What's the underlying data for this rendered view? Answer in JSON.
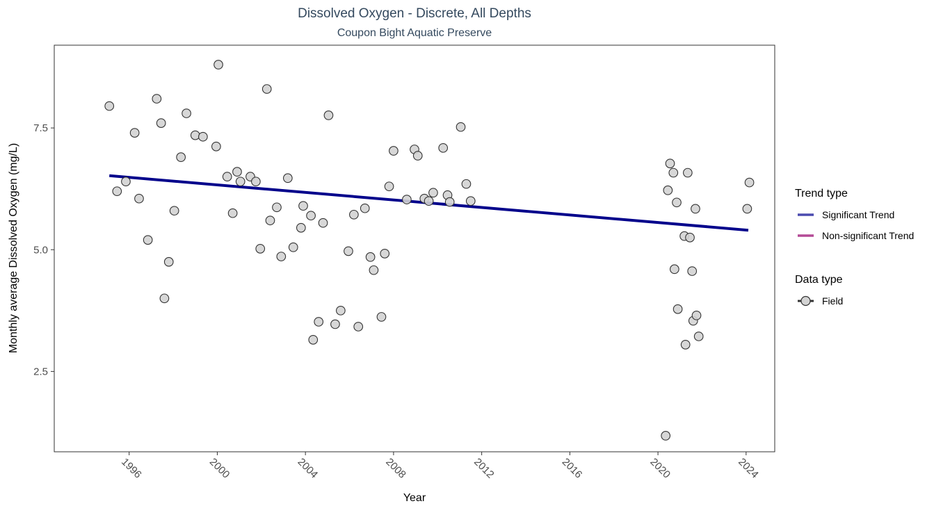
{
  "chart_data": {
    "type": "scatter",
    "title": "Dissolved Oxygen - Discrete, All Depths",
    "subtitle": "Coupon Bight Aquatic Preserve",
    "xlabel": "Year",
    "ylabel": "Monthly average Dissolved Oxygen (mg/L)",
    "xlim": [
      1992.6,
      2025.3
    ],
    "ylim": [
      0.85,
      9.2
    ],
    "x_ticks": [
      1996,
      2000,
      2004,
      2008,
      2012,
      2016,
      2020,
      2024
    ],
    "x_tick_labels": [
      "1996",
      "2000",
      "2004",
      "2008",
      "2012",
      "2016",
      "2020",
      "2024"
    ],
    "y_ticks": [
      2.5,
      5.0,
      7.5
    ],
    "y_tick_labels": [
      "2.5",
      "5.0",
      "7.5"
    ],
    "grid": false,
    "legend_position": "right",
    "colors": {
      "trend_line": "#00008b",
      "significant_trend": "#4b4baf",
      "non_significant_trend": "#b44a96",
      "point_fill": "#d3d3d3",
      "point_stroke": "#333333",
      "title_color": "#34495e"
    },
    "trend": {
      "type": "Significant Trend",
      "x": [
        1995.1,
        2024.1
      ],
      "y": [
        6.52,
        5.4
      ]
    },
    "legend": {
      "trend_title": "Trend type",
      "trend_items": [
        "Significant Trend",
        "Non-significant Trend"
      ],
      "data_title": "Data type",
      "data_items": [
        "Field"
      ]
    },
    "series": [
      {
        "name": "Field",
        "points": [
          [
            1995.1,
            7.95
          ],
          [
            1995.45,
            6.2
          ],
          [
            1995.85,
            6.4
          ],
          [
            1996.25,
            7.4
          ],
          [
            1996.45,
            6.05
          ],
          [
            1996.85,
            5.2
          ],
          [
            1997.25,
            8.1
          ],
          [
            1997.45,
            7.6
          ],
          [
            1997.6,
            4.0
          ],
          [
            1997.8,
            4.75
          ],
          [
            1998.05,
            5.8
          ],
          [
            1998.35,
            6.9
          ],
          [
            1998.6,
            7.8
          ],
          [
            1999.0,
            7.35
          ],
          [
            1999.35,
            7.32
          ],
          [
            1999.95,
            7.12
          ],
          [
            2000.05,
            8.8
          ],
          [
            2000.45,
            6.5
          ],
          [
            2000.7,
            5.75
          ],
          [
            2000.9,
            6.6
          ],
          [
            2001.05,
            6.4
          ],
          [
            2001.5,
            6.5
          ],
          [
            2001.75,
            6.4
          ],
          [
            2001.95,
            5.02
          ],
          [
            2002.25,
            8.3
          ],
          [
            2002.4,
            5.6
          ],
          [
            2002.7,
            5.87
          ],
          [
            2002.9,
            4.86
          ],
          [
            2003.2,
            6.47
          ],
          [
            2003.45,
            5.05
          ],
          [
            2003.8,
            5.45
          ],
          [
            2003.9,
            5.9
          ],
          [
            2004.25,
            5.7
          ],
          [
            2004.35,
            3.15
          ],
          [
            2004.6,
            3.52
          ],
          [
            2004.8,
            5.55
          ],
          [
            2005.05,
            7.76
          ],
          [
            2005.35,
            3.47
          ],
          [
            2005.6,
            3.75
          ],
          [
            2005.95,
            4.97
          ],
          [
            2006.2,
            5.72
          ],
          [
            2006.4,
            3.42
          ],
          [
            2006.7,
            5.85
          ],
          [
            2006.95,
            4.85
          ],
          [
            2007.1,
            4.58
          ],
          [
            2007.45,
            3.62
          ],
          [
            2007.6,
            4.92
          ],
          [
            2007.8,
            6.3
          ],
          [
            2008.0,
            7.03
          ],
          [
            2008.6,
            6.03
          ],
          [
            2008.95,
            7.06
          ],
          [
            2009.1,
            6.93
          ],
          [
            2009.4,
            6.05
          ],
          [
            2009.6,
            6.0
          ],
          [
            2009.8,
            6.17
          ],
          [
            2010.25,
            7.09
          ],
          [
            2010.45,
            6.12
          ],
          [
            2010.55,
            5.98
          ],
          [
            2011.05,
            7.52
          ],
          [
            2011.3,
            6.35
          ],
          [
            2011.5,
            6.0
          ],
          [
            2020.35,
            1.18
          ],
          [
            2020.45,
            6.22
          ],
          [
            2020.55,
            6.77
          ],
          [
            2020.7,
            6.58
          ],
          [
            2020.75,
            4.6
          ],
          [
            2020.85,
            5.97
          ],
          [
            2020.9,
            3.78
          ],
          [
            2021.2,
            5.28
          ],
          [
            2021.25,
            3.05
          ],
          [
            2021.35,
            6.58
          ],
          [
            2021.45,
            5.25
          ],
          [
            2021.55,
            4.56
          ],
          [
            2021.6,
            3.54
          ],
          [
            2021.7,
            5.84
          ],
          [
            2021.75,
            3.65
          ],
          [
            2021.85,
            3.22
          ],
          [
            2024.05,
            5.84
          ],
          [
            2024.15,
            6.38
          ]
        ]
      }
    ]
  }
}
